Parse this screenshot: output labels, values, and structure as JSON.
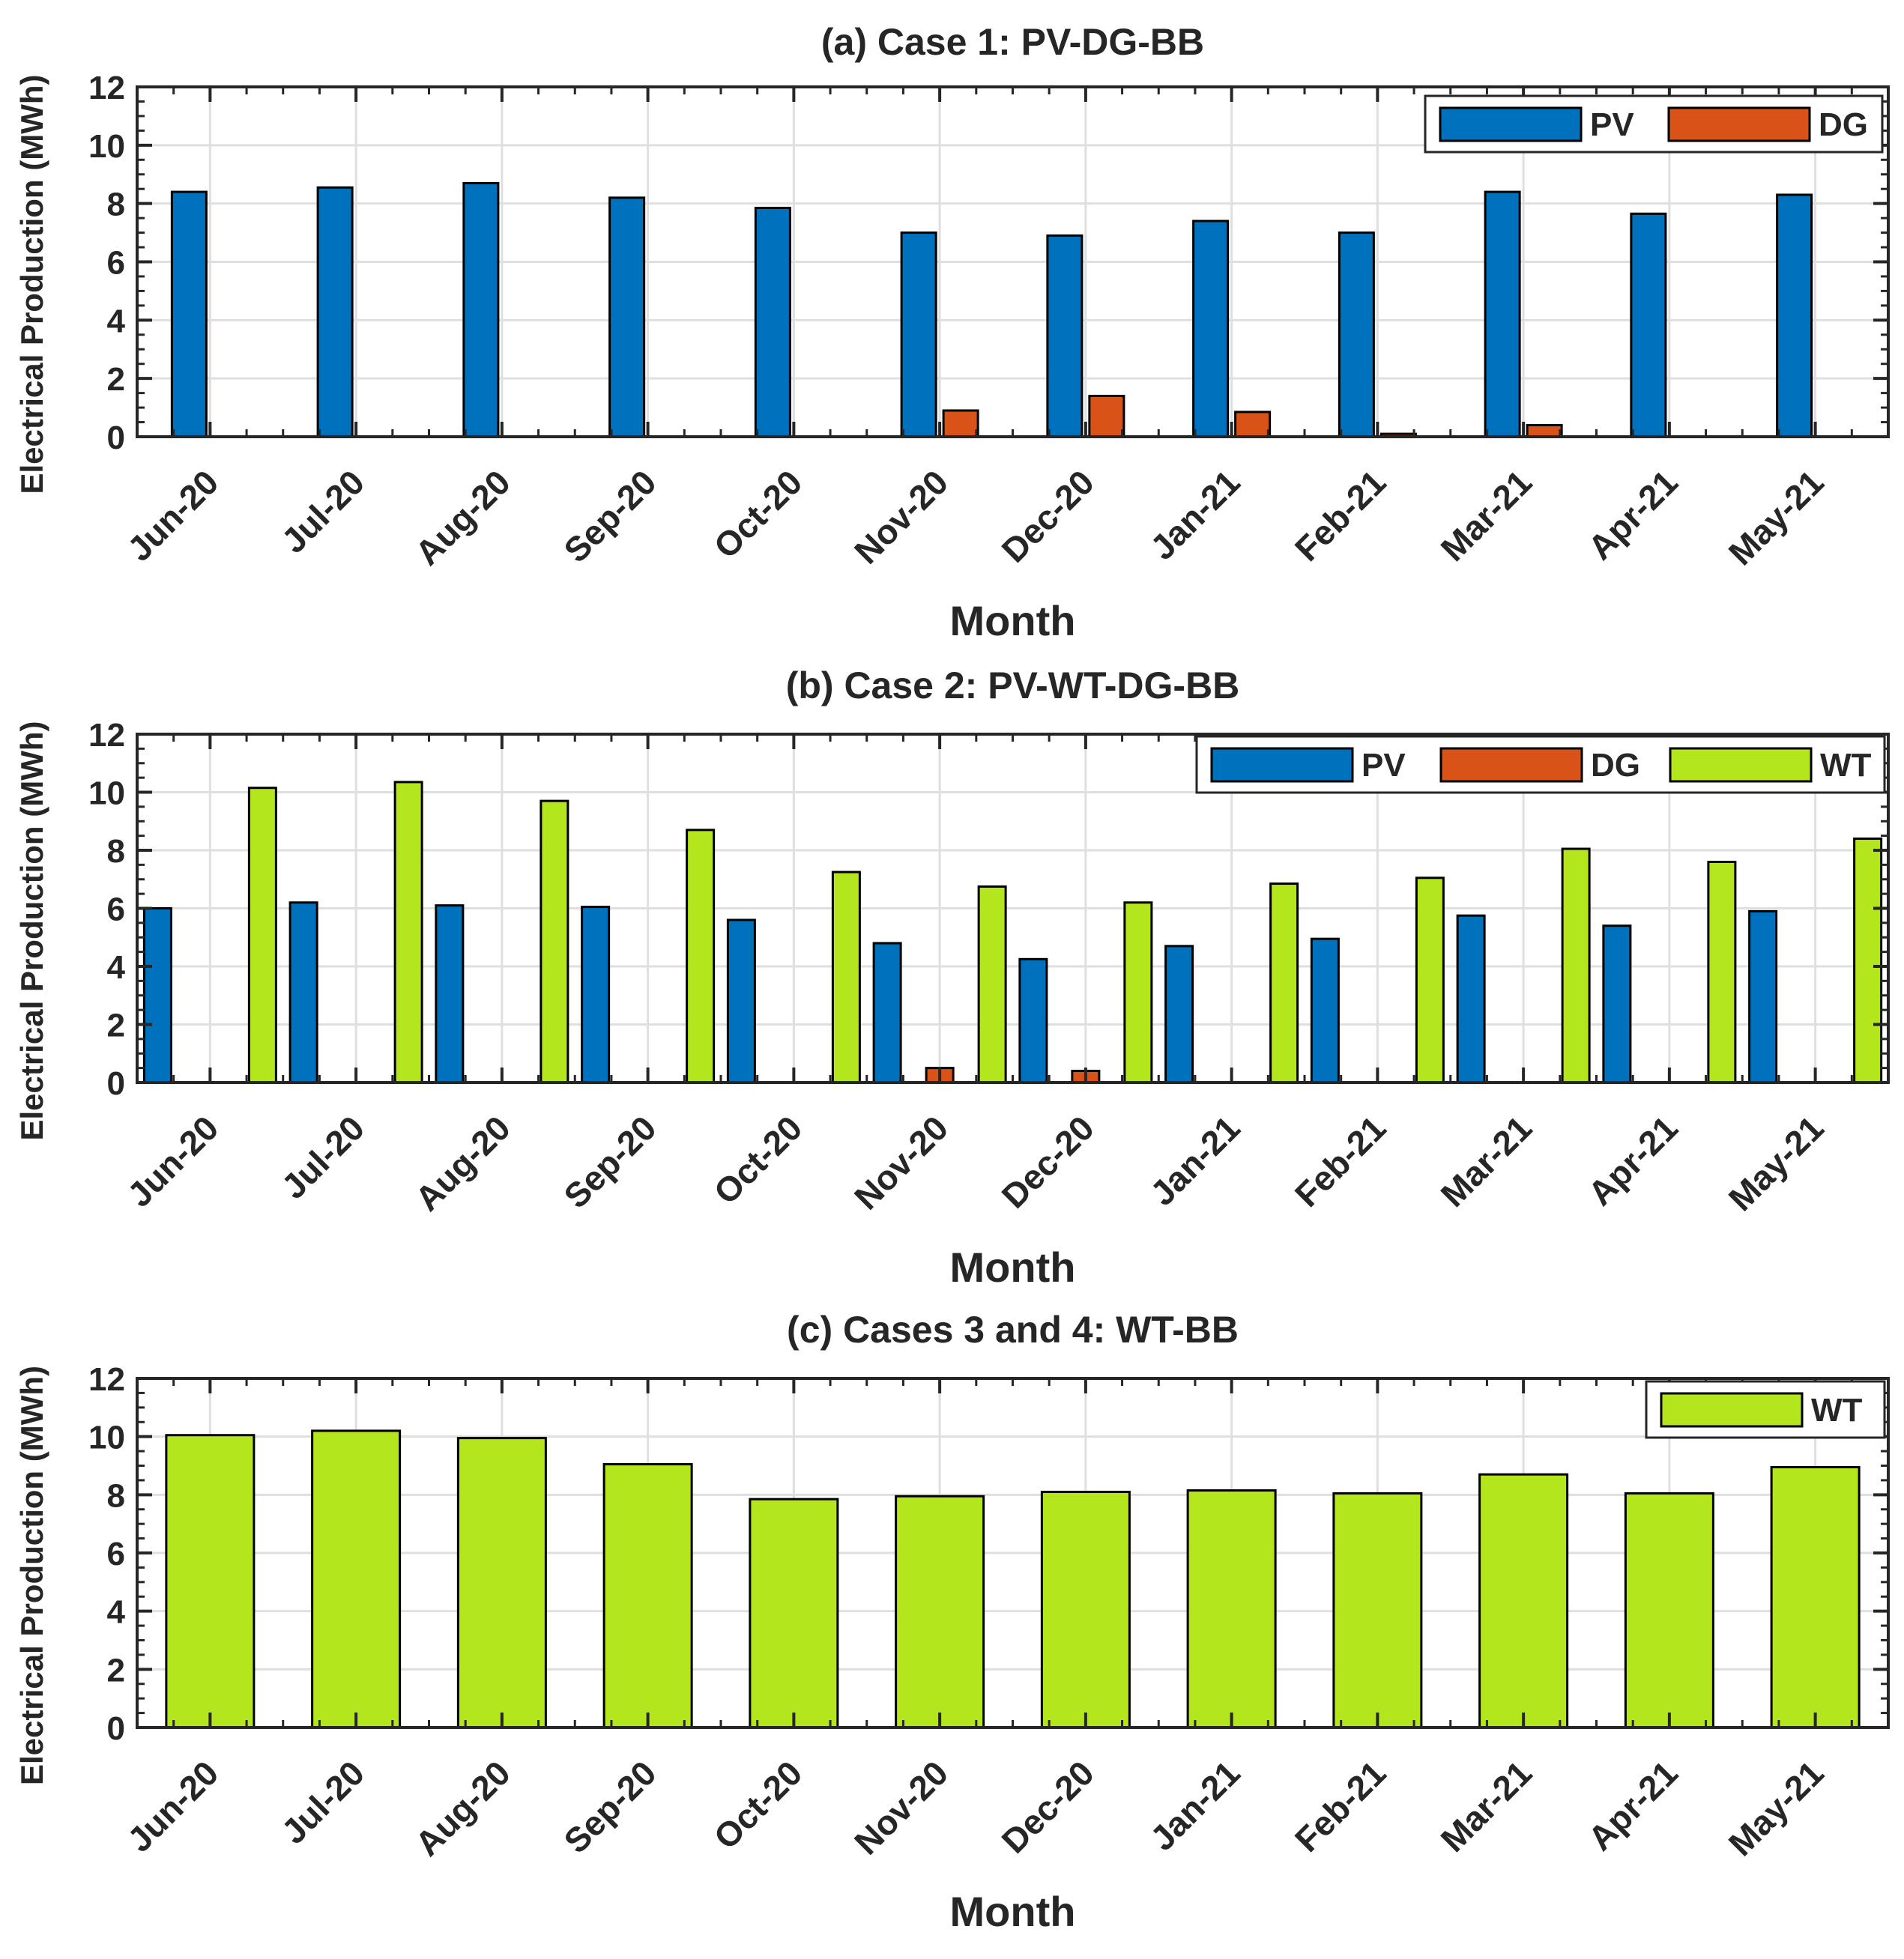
{
  "chart_data": [
    {
      "type": "bar",
      "title": "(a) Case 1: PV-DG-BB",
      "xlabel": "Month",
      "ylabel": "Electrical Production (MWh)",
      "ylim": [
        0,
        12
      ],
      "yticks": [
        0,
        2,
        4,
        6,
        8,
        10,
        12
      ],
      "grid": true,
      "legend": "top-right",
      "categories": [
        "Jun-20",
        "Jul-20",
        "Aug-20",
        "Sep-20",
        "Oct-20",
        "Nov-20",
        "Dec-20",
        "Jan-21",
        "Feb-21",
        "Mar-21",
        "Apr-21",
        "May-21"
      ],
      "series": [
        {
          "name": "PV",
          "color": "#0072BD",
          "values": [
            8.4,
            8.55,
            8.7,
            8.2,
            7.85,
            7.0,
            6.9,
            7.4,
            7.0,
            8.4,
            7.65,
            8.3
          ]
        },
        {
          "name": "DG",
          "color": "#D95319",
          "values": [
            0,
            0,
            0,
            0,
            0,
            0.9,
            1.4,
            0.85,
            0.1,
            0.4,
            0,
            0
          ]
        }
      ]
    },
    {
      "type": "bar",
      "title": "(b) Case 2: PV-WT-DG-BB",
      "xlabel": "Month",
      "ylabel": "Electrical Production (MWh)",
      "ylim": [
        0,
        12
      ],
      "yticks": [
        0,
        2,
        4,
        6,
        8,
        10,
        12
      ],
      "grid": true,
      "legend": "top-right",
      "categories": [
        "Jun-20",
        "Jul-20",
        "Aug-20",
        "Sep-20",
        "Oct-20",
        "Nov-20",
        "Dec-20",
        "Jan-21",
        "Feb-21",
        "Mar-21",
        "Apr-21",
        "May-21"
      ],
      "series": [
        {
          "name": "PV",
          "color": "#0072BD",
          "values": [
            6.0,
            6.2,
            6.1,
            6.05,
            5.6,
            4.8,
            4.25,
            4.7,
            4.95,
            5.75,
            5.4,
            5.9
          ]
        },
        {
          "name": "DG",
          "color": "#D95319",
          "values": [
            0,
            0,
            0,
            0,
            0,
            0.5,
            0.4,
            0,
            0,
            0,
            0,
            0
          ]
        },
        {
          "name": "WT",
          "color": "#B4E61E",
          "values": [
            10.15,
            10.35,
            9.7,
            8.7,
            7.25,
            6.75,
            6.2,
            6.85,
            7.05,
            8.05,
            7.6,
            8.4
          ]
        }
      ]
    },
    {
      "type": "bar",
      "title": "(c) Cases 3 and 4: WT-BB",
      "xlabel": "Month",
      "ylabel": "Electrical Production (MWh)",
      "ylim": [
        0,
        12
      ],
      "yticks": [
        0,
        2,
        4,
        6,
        8,
        10,
        12
      ],
      "grid": true,
      "legend": "top-right",
      "categories": [
        "Jun-20",
        "Jul-20",
        "Aug-20",
        "Sep-20",
        "Oct-20",
        "Nov-20",
        "Dec-20",
        "Jan-21",
        "Feb-21",
        "Mar-21",
        "Apr-21",
        "May-21"
      ],
      "series": [
        {
          "name": "WT",
          "color": "#B4E61E",
          "values": [
            10.05,
            10.2,
            9.95,
            9.05,
            7.85,
            7.95,
            8.1,
            8.15,
            8.05,
            8.7,
            8.05,
            8.95
          ]
        }
      ]
    }
  ]
}
